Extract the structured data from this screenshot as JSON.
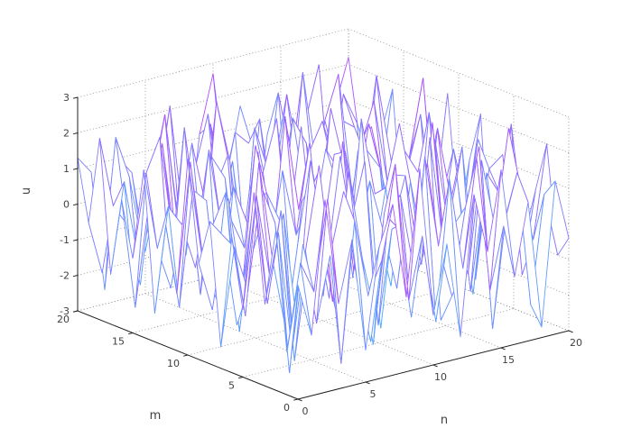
{
  "figure": {
    "background": "#ffffff"
  },
  "chart_data": {
    "type": "mesh3d",
    "title": "",
    "xlabel": "n",
    "ylabel": "m",
    "zlabel": "u",
    "x_range": [
      0,
      20
    ],
    "y_range": [
      0,
      20
    ],
    "z_range": [
      -3,
      3
    ],
    "x_ticks": [
      0,
      5,
      10,
      15,
      20
    ],
    "y_ticks": [
      0,
      5,
      10,
      15,
      20
    ],
    "z_ticks": [
      -3,
      -2,
      -1,
      0,
      1,
      2,
      3
    ],
    "grid": true,
    "grid_style": "dotted",
    "view": {
      "azimuth": -37.5,
      "elevation": 30
    },
    "colormap": "cool",
    "colormap_low": "#00ffff",
    "colormap_high": "#ff00ff",
    "face_color": "#ffffff",
    "values": [
      [
        0.2,
        -1.3,
        2.4,
        -0.6,
        1.1,
        -2.1,
        0.7,
        1.8,
        -0.9,
        2.6,
        -1.6,
        0.3,
        -2.4,
        1.5,
        -0.2,
        2.0,
        -1.1,
        0.9,
        -2.7,
        1.3,
        -0.4
      ],
      [
        -1.8,
        0.6,
        -0.3,
        2.2,
        -2.5,
        1.4,
        -0.8,
        0.1,
        2.7,
        -1.2,
        0.5,
        -2.0,
        1.9,
        -0.7,
        2.3,
        -1.5,
        0.2,
        1.6,
        -2.2,
        0.8,
        -1.0
      ],
      [
        1.5,
        -2.6,
        0.9,
        -1.4,
        0.4,
        2.1,
        -0.5,
        -2.3,
        1.2,
        0.7,
        -1.9,
        2.5,
        -0.1,
        -1.6,
        0.8,
        2.4,
        -2.8,
        0.3,
        1.1,
        -0.6,
        2.0
      ],
      [
        -0.7,
        1.2,
        -2.2,
        0.5,
        2.8,
        -1.1,
        1.7,
        -0.4,
        -2.6,
        0.9,
        1.4,
        -0.8,
        2.1,
        -2.4,
        0.2,
        -1.3,
        1.8,
        -0.2,
        2.5,
        -1.7,
        0.6
      ],
      [
        2.3,
        -0.9,
        1.6,
        -2.7,
        0.1,
        0.8,
        -1.5,
        2.2,
        -0.3,
        -2.1,
        1.0,
        0.4,
        -1.2,
        2.6,
        -0.6,
        1.3,
        -2.0,
        0.7,
        -1.4,
        2.4,
        -0.8
      ],
      [
        -1.1,
        2.0,
        -0.4,
        1.3,
        -1.9,
        2.6,
        -0.2,
        -1.7,
        0.6,
        2.2,
        -2.5,
        0.1,
        1.5,
        -0.9,
        2.8,
        -1.4,
        0.5,
        -2.3,
        1.0,
        0.3,
        -1.6
      ],
      [
        0.8,
        -1.5,
        2.7,
        -0.1,
        -2.2,
        0.5,
        1.9,
        -0.7,
        2.3,
        -1.0,
        0.2,
        -2.8,
        1.4,
        0.6,
        -1.3,
        2.1,
        -0.5,
        1.7,
        -2.1,
        0.9,
        1.2
      ],
      [
        -2.4,
        0.3,
        -1.0,
        1.8,
        0.7,
        -2.6,
        1.1,
        0.4,
        -1.8,
        2.5,
        -0.6,
        1.2,
        -0.3,
        -2.0,
        0.9,
        -1.2,
        2.2,
        0.1,
        -0.8,
        1.6,
        -2.7
      ],
      [
        1.0,
        0.5,
        -2.1,
        0.2,
        1.4,
        -0.4,
        -2.9,
        0.8,
        1.6,
        -1.3,
        2.0,
        -0.2,
        -1.5,
        0.7,
        2.4,
        -2.2,
        0.6,
        -1.1,
        1.3,
        -0.5,
        2.1
      ],
      [
        -0.3,
        -1.7,
        1.5,
        -2.5,
        0.9,
        1.2,
        0.3,
        -2.4,
        0.5,
        -0.8,
        1.8,
        -1.6,
        2.6,
        0.4,
        -1.0,
        0.2,
        -1.9,
        2.3,
        -0.1,
        -2.6,
        0.7
      ],
      [
        2.5,
        -0.2,
        0.6,
        1.1,
        -1.6,
        2.4,
        -0.9,
        1.5,
        -0.4,
        2.1,
        -2.3,
        0.8,
        -1.4,
        1.7,
        -0.7,
        -2.5,
        1.2,
        0.5,
        -1.8,
        0.1,
        -1.2
      ],
      [
        -1.4,
        2.2,
        -0.8,
        -1.9,
        0.3,
        -0.6,
        2.0,
        -1.1,
        2.8,
        0.1,
        -0.5,
        1.6,
        0.9,
        -2.2,
        1.3,
        0.7,
        -2.4,
        0.4,
        1.9,
        -0.9,
        2.3
      ],
      [
        0.4,
        -2.0,
        1.2,
        0.8,
        -2.7,
        1.0,
        -0.1,
        1.4,
        -1.5,
        -0.9,
        2.2,
        -2.6,
        0.5,
        1.1,
        -0.4,
        1.8,
        0.2,
        -1.6,
        0.6,
        2.7,
        -1.9
      ],
      [
        -2.2,
        0.7,
        0.1,
        -1.2,
        2.0,
        -0.5,
        -2.3,
        0.6,
        1.0,
        2.4,
        -1.1,
        0.3,
        -1.8,
        2.3,
        -2.1,
        0.9,
        1.5,
        -0.7,
        -1.3,
        0.8,
        1.4
      ],
      [
        1.7,
        -0.6,
        -1.8,
        2.6,
        -0.3,
        1.6,
        0.9,
        -2.1,
        -0.2,
        0.5,
        -1.7,
        2.1,
        1.3,
        -0.6,
        0.4,
        -2.7,
        0.8,
        2.0,
        -0.4,
        -1.5,
        0.3
      ],
      [
        -0.9,
        1.4,
        2.3,
        -0.7,
        1.2,
        -2.4,
        0.4,
        1.3,
        -2.7,
        1.9,
        0.6,
        -0.1,
        -2.3,
        0.8,
        1.6,
        0.3,
        -1.0,
        -1.9,
        2.5,
        0.2,
        -2.1
      ],
      [
        0.6,
        -2.5,
        0.3,
        1.9,
        -1.1,
        0.2,
        -1.6,
        2.7,
        0.9,
        -2.0,
        1.1,
        -0.7,
        1.8,
        -0.1,
        -1.9,
        1.4,
        2.6,
        -0.8,
        0.1,
        -1.1,
        1.8
      ],
      [
        -1.6,
        0.9,
        -1.3,
        0.4,
        2.5,
        -0.8,
        1.5,
        -0.3,
        -1.2,
        0.7,
        -2.4,
        1.7,
        -0.9,
        2.2,
        0.1,
        -0.5,
        -2.2,
        1.1,
        0.8,
        -2.8,
        0.5
      ],
      [
        2.1,
        0.1,
        -0.5,
        -2.3,
        0.8,
        1.7,
        -1.4,
        0.5,
        2.0,
        -0.6,
        1.3,
        0.9,
        -2.1,
        0.3,
        -1.7,
        2.5,
        -0.3,
        -1.0,
        1.6,
        0.7,
        -0.6
      ],
      [
        -0.4,
        -1.9,
        1.8,
        0.6,
        -1.5,
        -0.2,
        2.3,
        -1.0,
        0.4,
        1.5,
        -0.3,
        -2.7,
        0.7,
        -1.3,
        1.9,
        -0.1,
        0.9,
        2.4,
        -2.5,
        1.2,
        0.0
      ],
      [
        1.3,
        0.8,
        -2.6,
        1.0,
        0.5,
        -1.8,
        0.2,
        -0.9,
        -2.2,
        1.1,
        2.7,
        -0.4,
        1.6,
        -2.5,
        0.6,
        1.0,
        -1.3,
        0.3,
        -1.7,
        0.9,
        2.2
      ]
    ]
  }
}
